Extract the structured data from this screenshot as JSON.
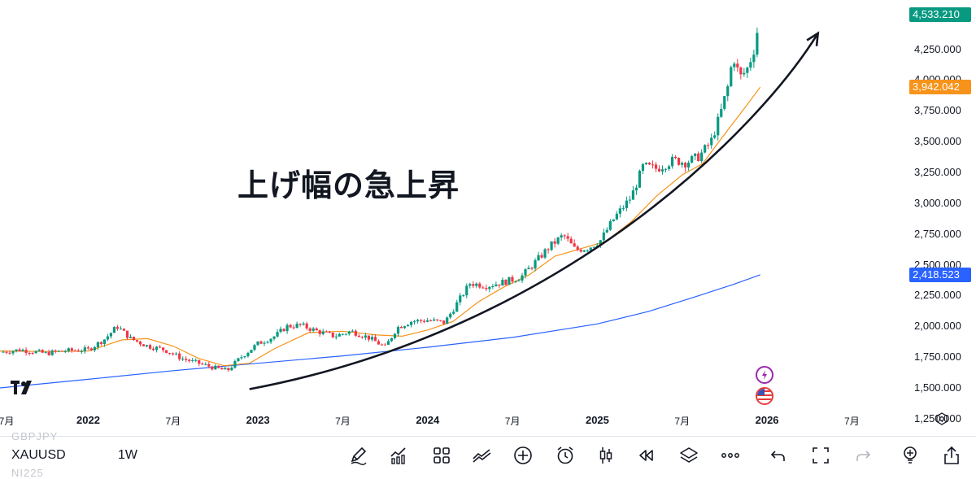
{
  "chart_data": {
    "type": "candlestick",
    "symbol": "XAUUSD",
    "interval": "1W",
    "annotation": "上げ幅の急上昇",
    "y_axis": {
      "ticks": [
        "4,250.000",
        "4,000.000",
        "3,750.000",
        "3,500.000",
        "3,250.000",
        "3,000.000",
        "2,750.000",
        "2,500.000",
        "2,250.000",
        "2,000.000",
        "1,750.000",
        "1,500.000",
        "1,250.000"
      ],
      "range": [
        1150,
        4650
      ]
    },
    "x_axis": {
      "ticks": [
        {
          "label": "7月",
          "date": 2021.5,
          "year": false
        },
        {
          "label": "2022",
          "date": 2022.0,
          "year": true
        },
        {
          "label": "7月",
          "date": 2022.5,
          "year": false
        },
        {
          "label": "2023",
          "date": 2023.0,
          "year": true
        },
        {
          "label": "7月",
          "date": 2023.5,
          "year": false
        },
        {
          "label": "2024",
          "date": 2024.0,
          "year": true
        },
        {
          "label": "7月",
          "date": 2024.5,
          "year": false
        },
        {
          "label": "2025",
          "date": 2025.0,
          "year": true
        },
        {
          "label": "7月",
          "date": 2025.5,
          "year": false
        },
        {
          "label": "2026",
          "date": 2026.0,
          "year": true
        },
        {
          "label": "7月",
          "date": 2026.5,
          "year": false
        }
      ],
      "range": [
        2021.48,
        2026.8
      ]
    },
    "price_badges": [
      {
        "name": "last-price",
        "value": "4,533.210",
        "price": 4533.21,
        "color": "#089981"
      },
      {
        "name": "ma-short",
        "value": "3,942.042",
        "price": 3942.042,
        "color": "#f7931a"
      },
      {
        "name": "ma-long",
        "value": "2,418.523",
        "price": 2418.523,
        "color": "#2962ff"
      }
    ],
    "price_path": [
      [
        2021.48,
        1790
      ],
      [
        2021.6,
        1810
      ],
      [
        2021.75,
        1780
      ],
      [
        2021.85,
        1800
      ],
      [
        2022.0,
        1810
      ],
      [
        2022.1,
        1900
      ],
      [
        2022.17,
        2000
      ],
      [
        2022.25,
        1900
      ],
      [
        2022.35,
        1840
      ],
      [
        2022.45,
        1810
      ],
      [
        2022.55,
        1740
      ],
      [
        2022.65,
        1700
      ],
      [
        2022.75,
        1660
      ],
      [
        2022.82,
        1640
      ],
      [
        2022.9,
        1750
      ],
      [
        2023.0,
        1860
      ],
      [
        2023.1,
        1920
      ],
      [
        2023.17,
        2000
      ],
      [
        2023.25,
        2010
      ],
      [
        2023.35,
        1960
      ],
      [
        2023.45,
        1920
      ],
      [
        2023.55,
        1960
      ],
      [
        2023.65,
        1910
      ],
      [
        2023.75,
        1830
      ],
      [
        2023.82,
        1990
      ],
      [
        2023.9,
        2040
      ],
      [
        2024.0,
        2050
      ],
      [
        2024.1,
        2030
      ],
      [
        2024.17,
        2180
      ],
      [
        2024.25,
        2350
      ],
      [
        2024.35,
        2330
      ],
      [
        2024.45,
        2360
      ],
      [
        2024.55,
        2400
      ],
      [
        2024.62,
        2500
      ],
      [
        2024.72,
        2650
      ],
      [
        2024.8,
        2740
      ],
      [
        2024.87,
        2620
      ],
      [
        2024.95,
        2640
      ],
      [
        2025.02,
        2700
      ],
      [
        2025.1,
        2880
      ],
      [
        2025.2,
        3050
      ],
      [
        2025.27,
        3300
      ],
      [
        2025.35,
        3280
      ],
      [
        2025.45,
        3350
      ],
      [
        2025.52,
        3330
      ],
      [
        2025.6,
        3380
      ],
      [
        2025.67,
        3500
      ],
      [
        2025.72,
        3700
      ],
      [
        2025.77,
        3950
      ],
      [
        2025.8,
        4200
      ],
      [
        2025.84,
        4020
      ],
      [
        2025.88,
        4080
      ],
      [
        2025.92,
        4230
      ],
      [
        2025.96,
        4533.21
      ]
    ],
    "ma_short": [
      [
        2021.48,
        1800
      ],
      [
        2021.8,
        1795
      ],
      [
        2022.0,
        1800
      ],
      [
        2022.2,
        1890
      ],
      [
        2022.35,
        1900
      ],
      [
        2022.5,
        1840
      ],
      [
        2022.65,
        1740
      ],
      [
        2022.8,
        1680
      ],
      [
        2022.95,
        1700
      ],
      [
        2023.1,
        1820
      ],
      [
        2023.3,
        1950
      ],
      [
        2023.5,
        1960
      ],
      [
        2023.7,
        1930
      ],
      [
        2023.85,
        1920
      ],
      [
        2024.0,
        1970
      ],
      [
        2024.15,
        2040
      ],
      [
        2024.3,
        2200
      ],
      [
        2024.45,
        2320
      ],
      [
        2024.6,
        2420
      ],
      [
        2024.75,
        2570
      ],
      [
        2024.9,
        2630
      ],
      [
        2025.05,
        2690
      ],
      [
        2025.2,
        2850
      ],
      [
        2025.35,
        3060
      ],
      [
        2025.5,
        3230
      ],
      [
        2025.62,
        3320
      ],
      [
        2025.75,
        3560
      ],
      [
        2025.85,
        3740
      ],
      [
        2025.96,
        3942.042
      ]
    ],
    "ma_long": [
      [
        2021.48,
        1500
      ],
      [
        2022.0,
        1570
      ],
      [
        2022.5,
        1640
      ],
      [
        2023.0,
        1700
      ],
      [
        2023.5,
        1760
      ],
      [
        2024.0,
        1830
      ],
      [
        2024.5,
        1910
      ],
      [
        2025.0,
        2020
      ],
      [
        2025.3,
        2120
      ],
      [
        2025.6,
        2250
      ],
      [
        2025.8,
        2340
      ],
      [
        2025.96,
        2418.523
      ]
    ],
    "trend_arrow": [
      [
        2022.95,
        1490
      ],
      [
        2024.8,
        1970
      ],
      [
        2025.95,
        3600
      ],
      [
        2026.3,
        4380
      ]
    ]
  },
  "toolbar": {
    "symbol": "XAUUSD",
    "interval": "1W",
    "watchlist_ghost": [
      "GBPJPY",
      "NI225"
    ]
  },
  "icons": [
    "drawing-pen-icon",
    "indicators-icon",
    "layout-grid-icon",
    "compare-icon",
    "add-icon",
    "alert-clock-icon",
    "candle-type-icon",
    "replay-icon",
    "layers-icon",
    "more-icon",
    "undo-icon",
    "fullscreen-icon",
    "redo-icon",
    "ideas-icon",
    "share-icon"
  ]
}
